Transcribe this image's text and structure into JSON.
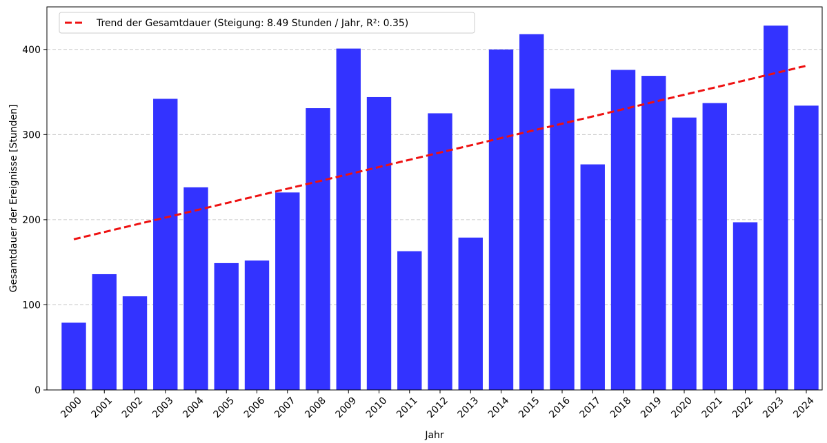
{
  "chart_data": {
    "type": "bar",
    "x_label": "Jahr",
    "y_label": "Gesamtdauer der Ereignisse [Stunden]",
    "categories": [
      "2000",
      "2001",
      "2002",
      "2003",
      "2004",
      "2005",
      "2006",
      "2007",
      "2008",
      "2009",
      "2010",
      "2011",
      "2012",
      "2013",
      "2014",
      "2015",
      "2016",
      "2017",
      "2018",
      "2019",
      "2020",
      "2021",
      "2022",
      "2023",
      "2024"
    ],
    "values": [
      79,
      136,
      110,
      342,
      238,
      149,
      152,
      232,
      331,
      401,
      344,
      163,
      325,
      179,
      400,
      418,
      354,
      265,
      376,
      369,
      320,
      337,
      197,
      428,
      334
    ],
    "color": "#3333ff",
    "trend": {
      "name": "Trend der Gesamtdauer (Steigung: 8.49 Stunden / Jahr, R²: 0.35)",
      "color": "#ee1111",
      "values": [
        177.0,
        185.5,
        194.0,
        202.5,
        211.0,
        219.5,
        227.9,
        236.4,
        244.9,
        253.4,
        261.9,
        270.4,
        278.9,
        287.4,
        295.9,
        304.4,
        312.8,
        321.3,
        329.8,
        338.3,
        346.8,
        355.3,
        363.8,
        372.3,
        380.8
      ]
    },
    "ylim": [
      0,
      450
    ],
    "yticks": [
      0,
      100,
      200,
      300,
      400
    ],
    "grid": true,
    "legend": "upper left"
  }
}
